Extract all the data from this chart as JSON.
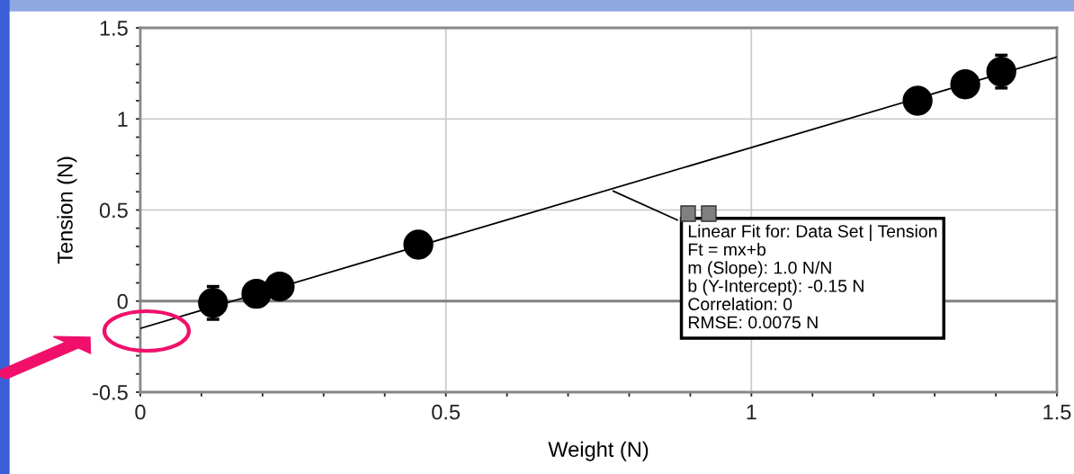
{
  "chart_data": {
    "type": "scatter",
    "xlabel": "Weight (N)",
    "ylabel": "Tension (N)",
    "x": [
      0.119,
      0.19,
      0.228,
      0.455,
      1.272,
      1.35,
      1.409
    ],
    "series": [
      {
        "color": "#000000",
        "marker": "circle",
        "values": [
          -0.01,
          0.04,
          0.08,
          0.31,
          1.1,
          1.19,
          1.26
        ],
        "errors": [
          0.09,
          null,
          null,
          null,
          null,
          null,
          0.09
        ]
      },
      {
        "type": "line",
        "color": "#000000",
        "marker": "none",
        "line_style": "solid",
        "x": [
          0,
          1.5
        ],
        "values": [
          -0.15,
          1.34
        ]
      }
    ],
    "xlim": [
      0,
      1.5
    ],
    "ylim": [
      -0.5,
      1.5
    ],
    "xticks": [
      0,
      {
        "value": 0.1,
        "label": null
      },
      {
        "value": 0.2,
        "label": null
      },
      {
        "value": 0.3,
        "label": null
      },
      {
        "value": 0.4,
        "label": null
      },
      0.5,
      {
        "value": 0.6,
        "label": null
      },
      {
        "value": 0.7,
        "label": null
      },
      {
        "value": 0.8,
        "label": null
      },
      {
        "value": 0.9,
        "label": null
      },
      1,
      {
        "value": 1.1,
        "label": null
      },
      {
        "value": 1.2,
        "label": null
      },
      {
        "value": 1.3,
        "label": null
      },
      {
        "value": 1.4,
        "label": null
      },
      1.5
    ],
    "yticks": [
      -0.5,
      {
        "value": -0.4,
        "label": null
      },
      {
        "value": -0.3,
        "label": null
      },
      {
        "value": -0.2,
        "label": null
      },
      {
        "value": -0.1,
        "label": null
      },
      0,
      {
        "value": 0.1,
        "label": null
      },
      {
        "value": 0.2,
        "label": null
      },
      {
        "value": 0.3,
        "label": null
      },
      {
        "value": 0.4,
        "label": null
      },
      0.5,
      {
        "value": 0.6,
        "label": null
      },
      {
        "value": 0.7,
        "label": null
      },
      {
        "value": 0.8,
        "label": null
      },
      {
        "value": 0.9,
        "label": null
      },
      1,
      {
        "value": 1.1,
        "label": null
      },
      {
        "value": 1.2,
        "label": null
      },
      {
        "value": 1.3,
        "label": null
      },
      {
        "value": 1.4,
        "label": null
      },
      1.5
    ],
    "grid": true,
    "ref_lines": [
      {
        "axis": "y",
        "value": 0,
        "color": "#808080"
      }
    ],
    "annotations": [
      {
        "text": "Linear Fit for: Data Set | Tension\nFt = mx+b\nm (Slope): 1.0 N/N\nb (Y-Intercept): -0.15 N\nCorrelation: 0\nRMSE: 0.0075 N",
        "x": 0.77,
        "y": 0.61
      }
    ]
  }
}
